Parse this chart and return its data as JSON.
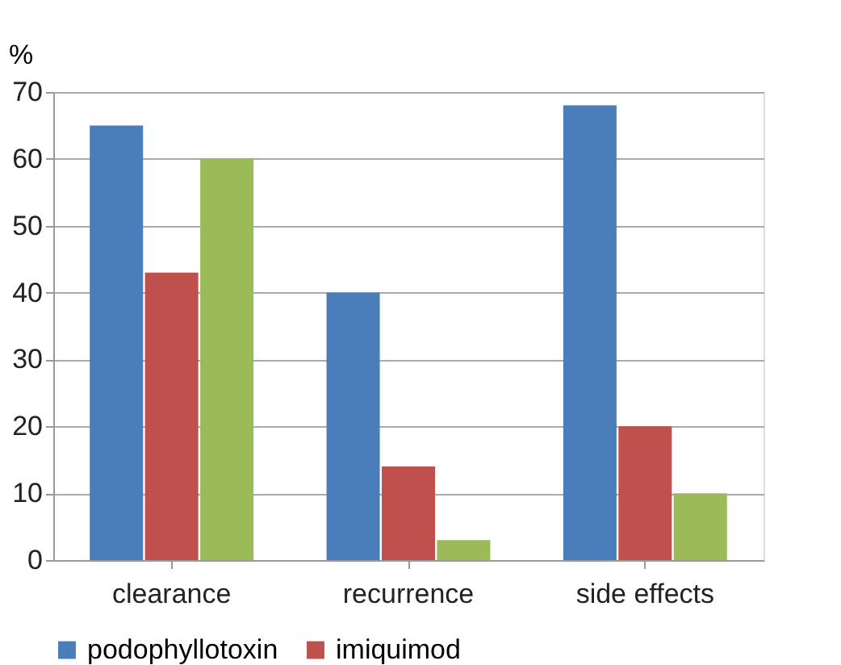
{
  "chart_data": {
    "type": "bar",
    "ylabel": "%",
    "categories": [
      "clearance",
      "recurrence",
      "side effects"
    ],
    "series": [
      {
        "name": "podophyllotoxin",
        "color": "#4a7ebb",
        "values": [
          65,
          40,
          68
        ]
      },
      {
        "name": "imiquimod",
        "color": "#c0504d",
        "values": [
          43,
          14,
          20
        ]
      },
      {
        "color": "#9bbb59",
        "values": [
          60,
          3,
          10
        ]
      }
    ],
    "ylim": [
      0,
      70
    ],
    "yticks": [
      0,
      10,
      20,
      30,
      40,
      50,
      60,
      70
    ],
    "grid": "y",
    "legend": "bottom"
  }
}
